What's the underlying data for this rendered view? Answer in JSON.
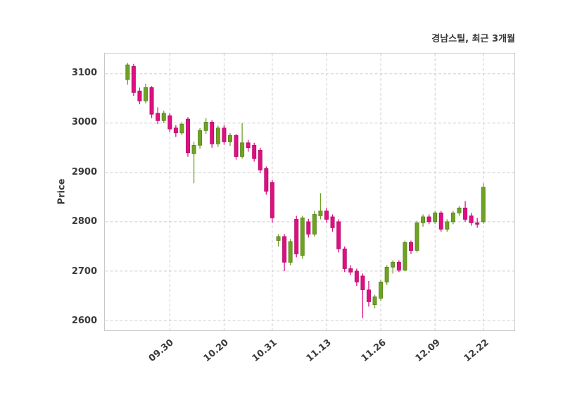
{
  "chart_data": {
    "type": "candlestick",
    "title": "경남스틸, 최근 3개월",
    "ylabel": "Price",
    "ylim": [
      2580,
      3141
    ],
    "yticks": [
      2600,
      2700,
      2800,
      2900,
      3000,
      3100
    ],
    "xtick_labels": [
      "09.30",
      "10.20",
      "10.31",
      "11.13",
      "11.26",
      "12.09",
      "12.22"
    ],
    "xtick_indices": [
      7,
      16,
      24,
      33,
      42,
      51,
      59
    ],
    "grid": true,
    "colors": {
      "up": "#6ea223",
      "up_edge": "#59831c",
      "down": "#df0f82",
      "down_edge": "#b30c69",
      "grid": "#cdcdcd",
      "axis_border": "#c8c8c8",
      "text": "#3a3a3a",
      "background": "#ffffff"
    },
    "candles": [
      [
        3088,
        3122,
        3078,
        3118
      ],
      [
        3115,
        3120,
        3055,
        3062
      ],
      [
        3065,
        3072,
        3038,
        3045
      ],
      [
        3045,
        3080,
        3040,
        3072
      ],
      [
        3072,
        3075,
        3010,
        3018
      ],
      [
        3020,
        3032,
        2998,
        3005
      ],
      [
        3005,
        3025,
        3000,
        3020
      ],
      [
        3015,
        3020,
        2982,
        2988
      ],
      [
        2990,
        2996,
        2972,
        2980
      ],
      [
        2980,
        3002,
        2976,
        2998
      ],
      [
        3008,
        3012,
        2932,
        2940
      ],
      [
        2938,
        2962,
        2878,
        2955
      ],
      [
        2955,
        2990,
        2948,
        2985
      ],
      [
        2985,
        3010,
        2978,
        3002
      ],
      [
        3002,
        3006,
        2950,
        2958
      ],
      [
        2958,
        2995,
        2952,
        2990
      ],
      [
        2990,
        2996,
        2956,
        2962
      ],
      [
        2962,
        2980,
        2954,
        2975
      ],
      [
        2975,
        2978,
        2926,
        2932
      ],
      [
        2932,
        3000,
        2928,
        2960
      ],
      [
        2960,
        2966,
        2942,
        2950
      ],
      [
        2955,
        2960,
        2922,
        2928
      ],
      [
        2945,
        2950,
        2898,
        2905
      ],
      [
        2908,
        2912,
        2855,
        2862
      ],
      [
        2880,
        2885,
        2798,
        2808
      ],
      [
        2762,
        2775,
        2750,
        2770
      ],
      [
        2770,
        2775,
        2700,
        2718
      ],
      [
        2718,
        2765,
        2712,
        2760
      ],
      [
        2805,
        2812,
        2728,
        2735
      ],
      [
        2732,
        2812,
        2725,
        2808
      ],
      [
        2800,
        2806,
        2768,
        2775
      ],
      [
        2775,
        2822,
        2770,
        2815
      ],
      [
        2812,
        2858,
        2805,
        2822
      ],
      [
        2822,
        2828,
        2798,
        2805
      ],
      [
        2810,
        2815,
        2780,
        2788
      ],
      [
        2800,
        2805,
        2738,
        2745
      ],
      [
        2745,
        2750,
        2698,
        2705
      ],
      [
        2705,
        2712,
        2692,
        2698
      ],
      [
        2700,
        2705,
        2670,
        2678
      ],
      [
        2690,
        2695,
        2605,
        2662
      ],
      [
        2662,
        2680,
        2628,
        2638
      ],
      [
        2632,
        2652,
        2625,
        2648
      ],
      [
        2645,
        2682,
        2640,
        2678
      ],
      [
        2678,
        2712,
        2672,
        2708
      ],
      [
        2708,
        2722,
        2695,
        2718
      ],
      [
        2718,
        2722,
        2698,
        2702
      ],
      [
        2702,
        2762,
        2700,
        2758
      ],
      [
        2758,
        2762,
        2735,
        2742
      ],
      [
        2742,
        2802,
        2738,
        2798
      ],
      [
        2798,
        2815,
        2790,
        2810
      ],
      [
        2810,
        2815,
        2795,
        2800
      ],
      [
        2800,
        2822,
        2796,
        2818
      ],
      [
        2818,
        2822,
        2780,
        2785
      ],
      [
        2785,
        2805,
        2780,
        2800
      ],
      [
        2800,
        2822,
        2795,
        2818
      ],
      [
        2818,
        2832,
        2812,
        2828
      ],
      [
        2828,
        2842,
        2800,
        2805
      ],
      [
        2812,
        2818,
        2792,
        2798
      ],
      [
        2798,
        2808,
        2788,
        2795
      ],
      [
        2800,
        2878,
        2796,
        2870
      ]
    ]
  }
}
